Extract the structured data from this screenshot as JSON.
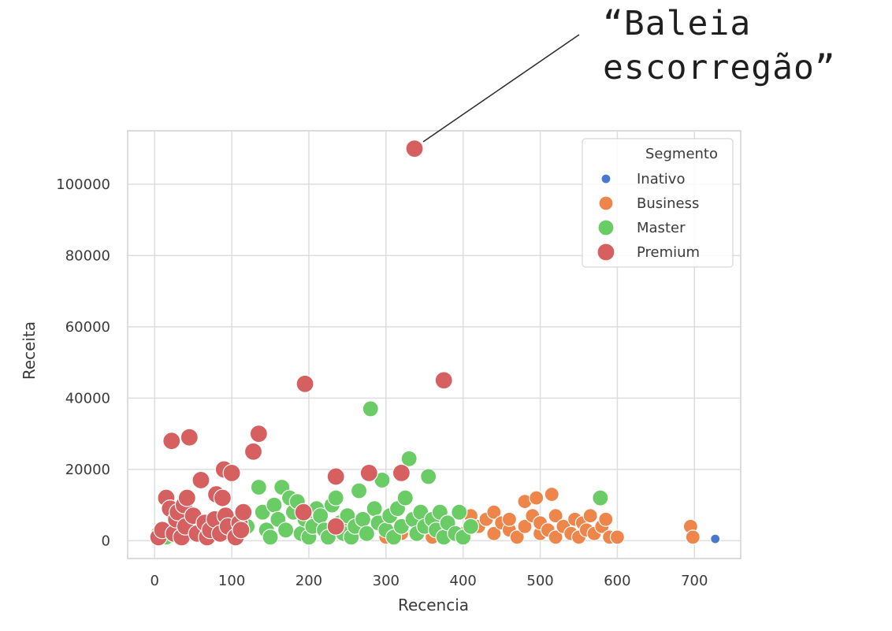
{
  "annotation": "“Baleia\nescorregão”",
  "chart_data": {
    "type": "scatter",
    "xlabel": "Recencia",
    "ylabel": "Receita",
    "xlim": [
      -35,
      760
    ],
    "ylim": [
      -5000,
      115000
    ],
    "xticks": [
      0,
      100,
      200,
      300,
      400,
      500,
      600,
      700
    ],
    "yticks": [
      0,
      20000,
      40000,
      60000,
      80000,
      100000
    ],
    "grid": true,
    "legend": {
      "title": "Segmento",
      "placement": "top-right"
    },
    "series": [
      {
        "name": "Inativo",
        "color": "#4878d0",
        "size": 6,
        "points": [
          [
            727,
            500
          ]
        ]
      },
      {
        "name": "Business",
        "color": "#ee854a",
        "size": 9,
        "points": [
          [
            300,
            1000
          ],
          [
            320,
            2000
          ],
          [
            360,
            1000
          ],
          [
            380,
            3000
          ],
          [
            400,
            2000
          ],
          [
            410,
            7000
          ],
          [
            420,
            4000
          ],
          [
            430,
            6000
          ],
          [
            440,
            8000
          ],
          [
            440,
            2000
          ],
          [
            450,
            5000
          ],
          [
            460,
            3000
          ],
          [
            460,
            6000
          ],
          [
            470,
            1000
          ],
          [
            480,
            11000
          ],
          [
            480,
            4000
          ],
          [
            490,
            7000
          ],
          [
            495,
            12000
          ],
          [
            500,
            2000
          ],
          [
            500,
            5000
          ],
          [
            510,
            3000
          ],
          [
            515,
            13000
          ],
          [
            520,
            7000
          ],
          [
            520,
            1000
          ],
          [
            530,
            4000
          ],
          [
            540,
            2000
          ],
          [
            545,
            6000
          ],
          [
            550,
            1000
          ],
          [
            555,
            5000
          ],
          [
            560,
            3000
          ],
          [
            565,
            7000
          ],
          [
            570,
            2000
          ],
          [
            580,
            4000
          ],
          [
            585,
            6000
          ],
          [
            590,
            1000
          ],
          [
            600,
            1000
          ],
          [
            695,
            4000
          ],
          [
            698,
            1000
          ]
        ]
      },
      {
        "name": "Master",
        "color": "#6acc64",
        "size": 10,
        "points": [
          [
            5,
            2000
          ],
          [
            15,
            1000
          ],
          [
            100,
            2000
          ],
          [
            120,
            4000
          ],
          [
            135,
            15000
          ],
          [
            140,
            8000
          ],
          [
            145,
            3000
          ],
          [
            150,
            1000
          ],
          [
            155,
            10000
          ],
          [
            160,
            6000
          ],
          [
            165,
            15000
          ],
          [
            170,
            3000
          ],
          [
            175,
            12000
          ],
          [
            180,
            8000
          ],
          [
            185,
            11000
          ],
          [
            190,
            2000
          ],
          [
            195,
            6000
          ],
          [
            200,
            1000
          ],
          [
            205,
            4000
          ],
          [
            210,
            9000
          ],
          [
            215,
            7000
          ],
          [
            220,
            3000
          ],
          [
            225,
            1000
          ],
          [
            230,
            10000
          ],
          [
            235,
            12000
          ],
          [
            240,
            5000
          ],
          [
            245,
            2000
          ],
          [
            250,
            7000
          ],
          [
            255,
            1000
          ],
          [
            260,
            4000
          ],
          [
            265,
            14000
          ],
          [
            270,
            6000
          ],
          [
            275,
            2000
          ],
          [
            280,
            37000
          ],
          [
            285,
            9000
          ],
          [
            290,
            5000
          ],
          [
            295,
            17000
          ],
          [
            300,
            3000
          ],
          [
            305,
            7000
          ],
          [
            310,
            1000
          ],
          [
            315,
            9000
          ],
          [
            320,
            4000
          ],
          [
            325,
            12000
          ],
          [
            330,
            23000
          ],
          [
            335,
            6000
          ],
          [
            340,
            2000
          ],
          [
            345,
            8000
          ],
          [
            350,
            4000
          ],
          [
            355,
            18000
          ],
          [
            360,
            6000
          ],
          [
            365,
            3000
          ],
          [
            370,
            8000
          ],
          [
            375,
            1000
          ],
          [
            380,
            5000
          ],
          [
            390,
            2000
          ],
          [
            395,
            8000
          ],
          [
            400,
            1000
          ],
          [
            410,
            4000
          ],
          [
            578,
            12000
          ]
        ]
      },
      {
        "name": "Premium",
        "color": "#d65f5f",
        "size": 11,
        "points": [
          [
            5,
            1000
          ],
          [
            10,
            3000
          ],
          [
            15,
            12000
          ],
          [
            20,
            9000
          ],
          [
            22,
            28000
          ],
          [
            25,
            2000
          ],
          [
            28,
            6000
          ],
          [
            30,
            8000
          ],
          [
            35,
            1000
          ],
          [
            38,
            10000
          ],
          [
            40,
            4000
          ],
          [
            42,
            12000
          ],
          [
            45,
            29000
          ],
          [
            50,
            7000
          ],
          [
            55,
            2000
          ],
          [
            60,
            17000
          ],
          [
            65,
            5000
          ],
          [
            68,
            1000
          ],
          [
            72,
            3000
          ],
          [
            78,
            6000
          ],
          [
            80,
            13000
          ],
          [
            85,
            2000
          ],
          [
            88,
            12000
          ],
          [
            90,
            20000
          ],
          [
            92,
            7000
          ],
          [
            95,
            4000
          ],
          [
            100,
            19000
          ],
          [
            105,
            1000
          ],
          [
            110,
            5000
          ],
          [
            112,
            3000
          ],
          [
            115,
            8000
          ],
          [
            128,
            25000
          ],
          [
            135,
            30000
          ],
          [
            195,
            44000
          ],
          [
            193,
            8000
          ],
          [
            235,
            18000
          ],
          [
            235,
            4000
          ],
          [
            278,
            19000
          ],
          [
            320,
            19000
          ],
          [
            337,
            110000
          ],
          [
            375,
            45000
          ]
        ]
      }
    ]
  }
}
